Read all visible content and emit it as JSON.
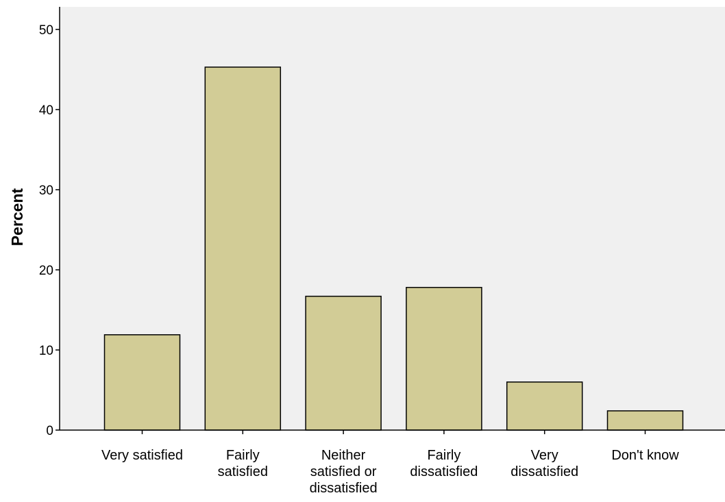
{
  "chart_data": {
    "type": "bar",
    "title": "",
    "xlabel": "",
    "ylabel": "Percent",
    "categories": [
      [
        "Very satisfied"
      ],
      [
        "Fairly",
        "satisfied"
      ],
      [
        "Neither",
        "satisfied or",
        "dissatisfied"
      ],
      [
        "Fairly",
        "dissatisfied"
      ],
      [
        "Very",
        "dissatisfied"
      ],
      [
        "Don't know"
      ]
    ],
    "values": [
      11.9,
      45.3,
      16.7,
      17.8,
      6.0,
      2.4
    ],
    "ylim": [
      0,
      50
    ],
    "yticks": [
      0,
      10,
      20,
      30,
      40,
      50
    ],
    "grid": false,
    "colors": {
      "plot_bg": "#f0f0f0",
      "bar_fill": "#d2cc96",
      "bar_stroke": "#000000"
    }
  }
}
